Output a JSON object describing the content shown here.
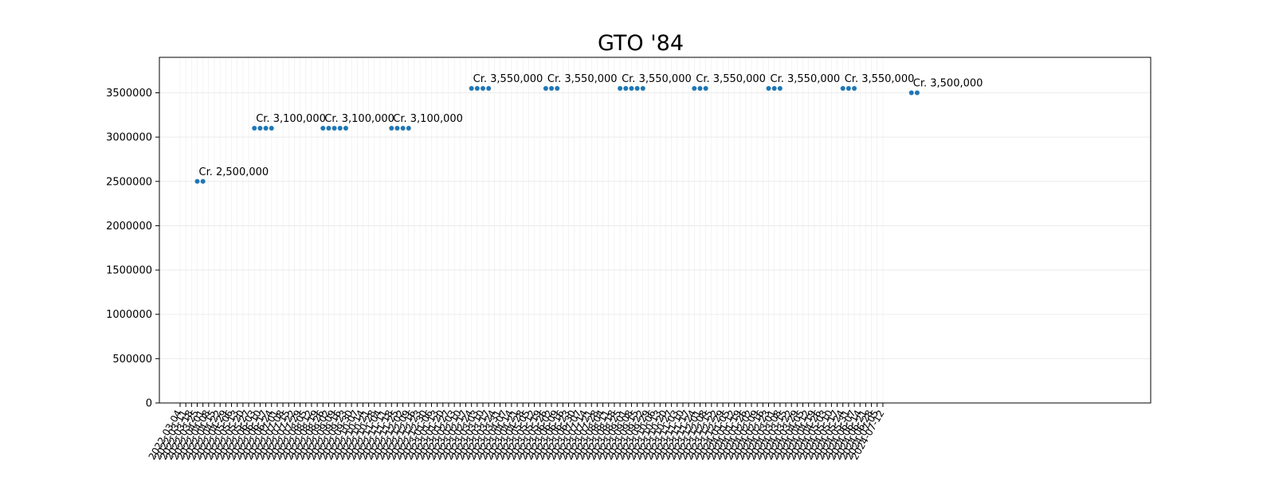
{
  "chart_data": {
    "type": "scatter",
    "title": "GTO '84",
    "xlabel": "",
    "ylabel": "",
    "ylim": [
      0,
      3900000
    ],
    "yticks": [
      0,
      500000,
      1000000,
      1500000,
      2000000,
      2500000,
      3000000,
      3500000
    ],
    "grid": true,
    "color": "#1f77b4",
    "x_start_date": "2022-03-04",
    "xtick_step_days": 7,
    "xtick_count": 124,
    "groups": [
      {
        "label": "Cr. 2,500,000",
        "value": 2500000,
        "dates": [
          "2022-03-25",
          "2022-04-01"
        ]
      },
      {
        "label": "Cr. 3,100,000",
        "value": 3100000,
        "dates": [
          "2022-06-03",
          "2022-06-10",
          "2022-06-17",
          "2022-06-24"
        ]
      },
      {
        "label": "Cr. 3,100,000",
        "value": 3100000,
        "dates": [
          "2022-08-26",
          "2022-09-02",
          "2022-09-09",
          "2022-09-16",
          "2022-09-23"
        ]
      },
      {
        "label": "Cr. 3,100,000",
        "value": 3100000,
        "dates": [
          "2022-11-18",
          "2022-11-25",
          "2022-12-02",
          "2022-12-09"
        ]
      },
      {
        "label": "Cr. 3,550,000",
        "value": 3550000,
        "dates": [
          "2023-02-24",
          "2023-03-03",
          "2023-03-10",
          "2023-03-17"
        ]
      },
      {
        "label": "Cr. 3,550,000",
        "value": 3550000,
        "dates": [
          "2023-05-26",
          "2023-06-02",
          "2023-06-09"
        ]
      },
      {
        "label": "Cr. 3,550,000",
        "value": 3550000,
        "dates": [
          "2023-08-25",
          "2023-09-01",
          "2023-09-08",
          "2023-09-15",
          "2023-09-22"
        ]
      },
      {
        "label": "Cr. 3,550,000",
        "value": 3550000,
        "dates": [
          "2023-11-24",
          "2023-12-01",
          "2023-12-08"
        ]
      },
      {
        "label": "Cr. 3,550,000",
        "value": 3550000,
        "dates": [
          "2024-02-23",
          "2024-03-01",
          "2024-03-08"
        ]
      },
      {
        "label": "Cr. 3,550,000",
        "value": 3550000,
        "dates": [
          "2024-05-24",
          "2024-05-31",
          "2024-06-07"
        ]
      },
      {
        "label": "Cr. 3,500,000",
        "value": 3500000,
        "dates": [
          "2024-08-16",
          "2024-08-23"
        ]
      }
    ]
  }
}
